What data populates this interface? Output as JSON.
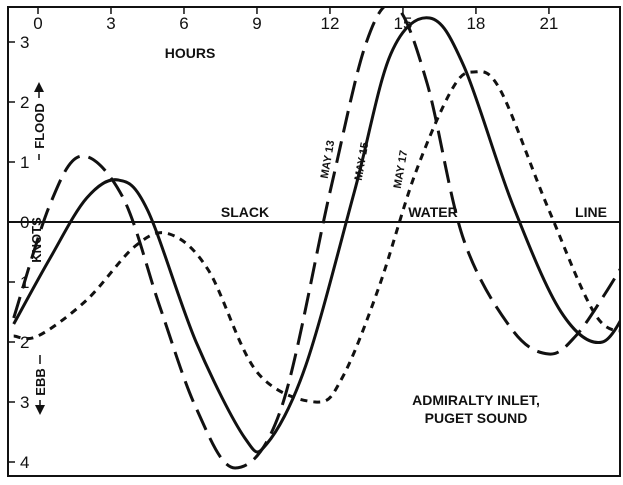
{
  "chart_data": {
    "type": "line",
    "title": "",
    "xlabel": "HOURS",
    "ylabel": "KNOTS",
    "xlim": [
      -1,
      24.5
    ],
    "ylim": [
      -4.3,
      3.2
    ],
    "x_ticks": [
      0,
      3,
      6,
      9,
      12,
      15,
      18,
      21
    ],
    "x_tick_labels": [
      "0",
      "3",
      "6",
      "9",
      "12",
      "15",
      "18",
      "21"
    ],
    "y_ticks": [
      3,
      2,
      1,
      0,
      -1,
      -2,
      -3,
      -4
    ],
    "y_tick_labels": [
      "3",
      "2",
      "1",
      "0",
      "1",
      "2",
      "3",
      "4"
    ],
    "flood_label": "FLOOD",
    "ebb_label": "EBB",
    "slack_line_words": [
      "SLACK",
      "WATER",
      "LINE"
    ],
    "annotation_lines": [
      "ADMIRALTY INLET,",
      "PUGET SOUND"
    ],
    "grid": false,
    "series": [
      {
        "name": "MAY 13",
        "style": "long-dash",
        "color": "#111111",
        "x": [
          -1,
          0.5,
          1.8,
          3.5,
          5,
          6.5,
          8.1,
          10,
          12,
          13.5,
          14.7,
          16,
          17.5,
          19.5,
          21,
          22.1,
          23.3,
          24.5
        ],
        "y": [
          -1.6,
          0.3,
          1.1,
          0.4,
          -1.4,
          -3.1,
          -4.1,
          -3.1,
          0.5,
          3.0,
          3.6,
          2.3,
          -0.3,
          -1.8,
          -2.2,
          -1.9,
          -1.2,
          -0.4
        ]
      },
      {
        "name": "MAY 15",
        "style": "solid",
        "color": "#111111",
        "x": [
          -1,
          0.5,
          2,
          3.3,
          4.5,
          6.5,
          8.5,
          9.4,
          11,
          13,
          14.5,
          16.1,
          17.5,
          19.5,
          21.5,
          23.2,
          24.5
        ],
        "y": [
          -1.7,
          -0.6,
          0.4,
          0.7,
          0.2,
          -2.0,
          -3.6,
          -3.7,
          -2.4,
          0.5,
          2.8,
          3.4,
          2.6,
          0.3,
          -1.5,
          -2.0,
          -1.2
        ]
      },
      {
        "name": "MAY 17",
        "style": "short-dash",
        "color": "#111111",
        "x": [
          -1,
          0,
          2,
          4,
          5.4,
          7,
          9,
          11.4,
          12.5,
          14,
          15.5,
          17,
          17.9,
          19,
          21,
          23,
          24.5
        ],
        "y": [
          -1.9,
          -1.9,
          -1.3,
          -0.4,
          -0.2,
          -0.8,
          -2.5,
          -3.0,
          -2.6,
          -1.1,
          0.8,
          2.2,
          2.5,
          2.2,
          0.2,
          -1.6,
          -1.8
        ]
      }
    ]
  }
}
